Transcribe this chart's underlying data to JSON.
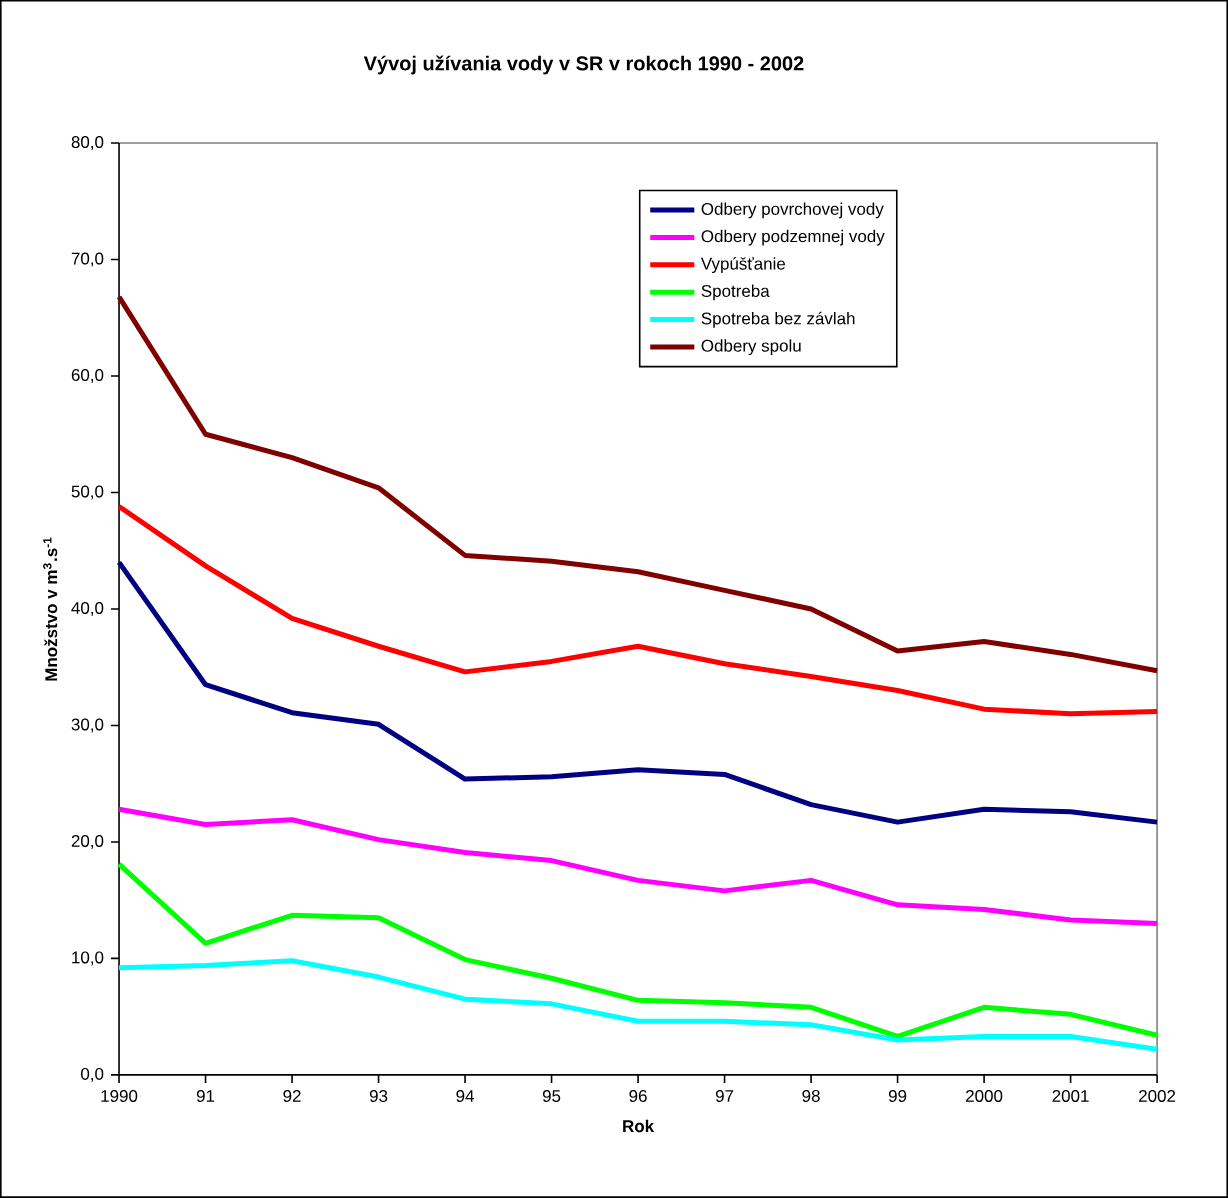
{
  "chart_data": {
    "type": "line",
    "title": "Vývoj užívania vody v SR v rokoch 1990 - 2002",
    "xlabel": "Rok",
    "ylabel": "Množstvo v m$^{3}$.s$^{-1}$",
    "categories": [
      "1990",
      "91",
      "92",
      "93",
      "94",
      "95",
      "96",
      "97",
      "98",
      "99",
      "2000",
      "2001",
      "2002"
    ],
    "ylim": [
      0,
      80
    ],
    "yticks": [
      {
        "value": 0,
        "label": "0,0"
      },
      {
        "value": 10,
        "label": "10,0"
      },
      {
        "value": 20,
        "label": "20,0"
      },
      {
        "value": 30,
        "label": "30,0"
      },
      {
        "value": 40,
        "label": "40,0"
      },
      {
        "value": 50,
        "label": "50,0"
      },
      {
        "value": 60,
        "label": "60,0"
      },
      {
        "value": 70,
        "label": "70,0"
      },
      {
        "value": 80,
        "label": "80,0"
      }
    ],
    "grid": false,
    "legend": "top right",
    "marker": "none",
    "line_style": "solid",
    "series": [
      {
        "name": "Odbery povrchovej vody",
        "color": "#000080",
        "values": [
          44.0,
          33.5,
          31.1,
          30.1,
          25.4,
          25.6,
          26.2,
          25.8,
          23.2,
          21.7,
          22.8,
          22.6,
          21.7
        ]
      },
      {
        "name": "Odbery podzemnej vody",
        "color": "#ff00ff",
        "values": [
          22.8,
          21.5,
          21.9,
          20.2,
          19.1,
          18.4,
          16.7,
          15.8,
          16.7,
          14.6,
          14.2,
          13.3,
          13.0
        ]
      },
      {
        "name": "Vypúšťanie",
        "color": "#ff0000",
        "values": [
          48.8,
          43.7,
          39.2,
          36.8,
          34.6,
          35.5,
          36.8,
          35.3,
          34.2,
          33.0,
          31.4,
          31.0,
          31.2
        ]
      },
      {
        "name": "Spotreba",
        "color": "#00ff00",
        "values": [
          18.1,
          11.3,
          13.7,
          13.5,
          9.9,
          8.3,
          6.4,
          6.2,
          5.8,
          3.3,
          5.8,
          5.2,
          3.4
        ]
      },
      {
        "name": "Spotreba bez závlah",
        "color": "#00ffff",
        "values": [
          9.2,
          9.4,
          9.8,
          8.4,
          6.5,
          6.1,
          4.6,
          4.6,
          4.3,
          3.0,
          3.3,
          3.3,
          2.2
        ]
      },
      {
        "name": "Odbery spolu",
        "color": "#800000",
        "values": [
          66.8,
          55.0,
          53.0,
          50.4,
          44.6,
          44.1,
          43.2,
          41.6,
          40.0,
          36.4,
          37.2,
          36.1,
          34.7
        ]
      }
    ]
  }
}
